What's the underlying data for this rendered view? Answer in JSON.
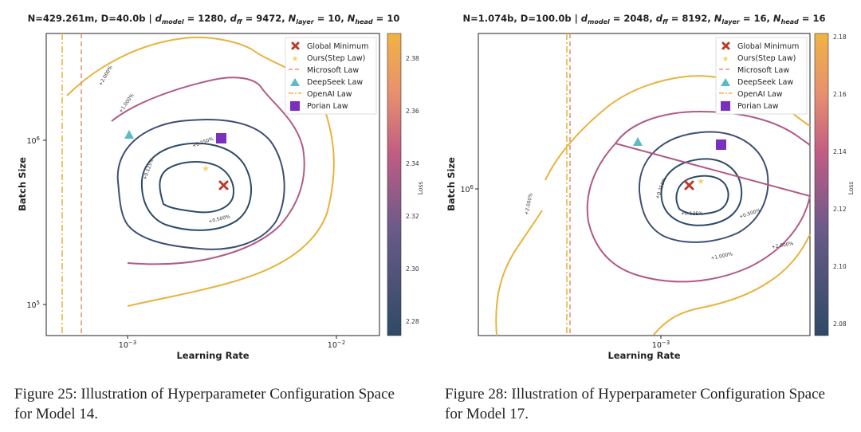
{
  "colors": {
    "global_min": "#c0392b",
    "step_law": "#f2d36b",
    "microsoft": "#e8967a",
    "deepseek": "#5bbcc4",
    "openai": "#e6b740",
    "porian": "#7b2fbe",
    "contour_low": "#2e4a66",
    "contour_mid": "#b05a86",
    "contour_high": "#e8b23c"
  },
  "legend": {
    "global_min": "Global Minimum",
    "step_law": "Ours(Step Law)",
    "microsoft": "Microsoft Law",
    "deepseek": "DeepSeek Law",
    "openai": "OpenAI Law",
    "porian": "Porian Law"
  },
  "panels": [
    {
      "title_prefix": "N=429.261m, D=40.0b | ",
      "params": {
        "d_model": "1280",
        "d_ff": "9472",
        "N_layer": "10",
        "N_head": "10"
      },
      "caption": "Figure 25: Illustration of Hyperparameter Configuration Space for Model 14.",
      "chart_data": {
        "type": "contour",
        "xlabel": "Learning Rate",
        "ylabel": "Batch Size",
        "x_scale": "log",
        "y_scale": "log",
        "x_ticks": [
          "10^-3",
          "10^-2"
        ],
        "y_ticks": [
          "10^6",
          "10^5"
        ],
        "colorbar_label": "Loss",
        "colorbar_range": [
          2.275,
          2.39
        ],
        "colorbar_ticks": [
          "2.38",
          "2.36",
          "2.34",
          "2.32",
          "2.30",
          "2.28"
        ],
        "contour_labels": [
          "+0.125%",
          "+0.250%",
          "+0.500%",
          "+1.000%",
          "+2.000%"
        ],
        "points": {
          "global_min": {
            "lr": 0.0027,
            "bs": 520000
          },
          "step_law": {
            "lr": 0.0024,
            "bs": 640000
          },
          "deepseek": {
            "lr": 0.00097,
            "bs": 1050000
          },
          "porian": {
            "lr": 0.0027,
            "bs": 1000000
          }
        },
        "microsoft_lr": 0.00058,
        "openai_lr": 0.00048,
        "legend_position": "top-right"
      }
    },
    {
      "title_prefix": "N=1.074b, D=100.0b | ",
      "params": {
        "d_model": "2048",
        "d_ff": "8192",
        "N_layer": "16",
        "N_head": "16"
      },
      "caption": "Figure 28: Illustration of Hyperparameter Configuration Space for Model 17.",
      "chart_data": {
        "type": "contour",
        "xlabel": "Learning Rate",
        "ylabel": "Batch Size",
        "x_scale": "log",
        "y_scale": "log",
        "x_ticks": [
          "10^-3"
        ],
        "y_ticks": [
          "10^6"
        ],
        "colorbar_label": "Loss",
        "colorbar_range": [
          2.075,
          2.18
        ],
        "colorbar_ticks": [
          "2.18",
          "2.16",
          "2.14",
          "2.12",
          "2.10",
          "2.08"
        ],
        "contour_labels": [
          "+0.125%",
          "+0.250%",
          "+0.500%",
          "+1.000%",
          "+2.000%"
        ],
        "points": {
          "global_min": {
            "lr": 0.00111,
            "bs": 1020000
          },
          "step_law": {
            "lr": 0.00118,
            "bs": 1030000
          },
          "deepseek": {
            "lr": 0.00078,
            "bs": 1400000
          },
          "porian": {
            "lr": 0.00145,
            "bs": 1350000
          }
        },
        "microsoft_lr": 0.00047,
        "openai_lr": 0.00046,
        "legend_position": "top-right"
      }
    }
  ]
}
